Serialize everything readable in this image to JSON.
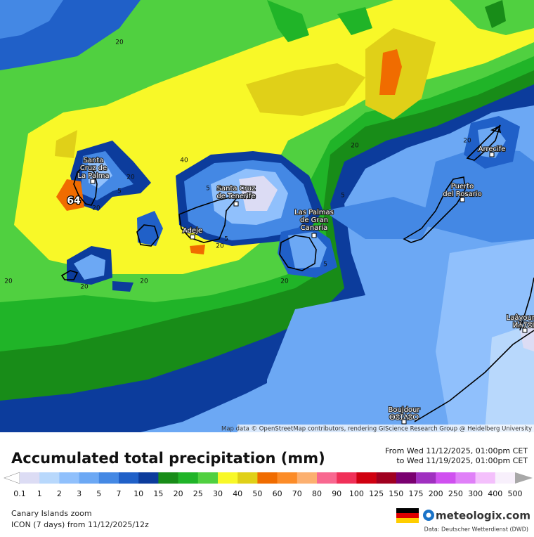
{
  "map": {
    "city_labels": [
      {
        "lines": [
          "Santa",
          "Cruz de",
          "La Palma"
        ]
      },
      {
        "lines": [
          "Santa Cruz",
          "de Tenerife"
        ]
      },
      {
        "lines": [
          "Adeje"
        ]
      },
      {
        "lines": [
          "Las Palmas",
          "de Gran",
          "Canaria"
        ]
      },
      {
        "lines": [
          "Puerto",
          "del Rosario"
        ]
      },
      {
        "lines": [
          "Arrecife"
        ]
      },
      {
        "lines": [
          "Laâyoune",
          "ⵍⵄⵢⵓⵏ"
        ]
      },
      {
        "lines": [
          "Boujdour",
          "ⴱⵓⵊⴷⵓⵔ"
        ]
      }
    ],
    "contour_labels": [
      20,
      20,
      20,
      20,
      20,
      20,
      20,
      20,
      20,
      20,
      40,
      5,
      5,
      5,
      5,
      5
    ],
    "max_label": 64,
    "attribution": "Map data © OpenStreetMap contributors, rendering GIScience Research Group @ Heidelberg University"
  },
  "legend": {
    "title": "Accumulated total precipitation (mm)",
    "period": [
      "From Wed 11/12/2025, 01:00pm CET",
      "to Wed 11/19/2025, 01:00pm CET"
    ],
    "ticks": [
      0.1,
      1,
      2,
      3,
      5,
      7,
      10,
      15,
      20,
      25,
      30,
      40,
      50,
      60,
      70,
      80,
      90,
      100,
      125,
      150,
      175,
      200,
      250,
      300,
      400,
      500
    ],
    "colors": [
      "#dcdcf4",
      "#b8d8fc",
      "#90c0fc",
      "#6ca8f4",
      "#4488e4",
      "#2060c8",
      "#0c3c9c",
      "#188c18",
      "#20b428",
      "#50d040",
      "#f8f828",
      "#e0d018",
      "#f06c00",
      "#fc8c28",
      "#fcb070",
      "#f86890",
      "#f03058",
      "#d00010",
      "#a00020",
      "#7a0070",
      "#a030c0",
      "#d050f0",
      "#e080f8",
      "#f4c0fc",
      "#f8f0fc"
    ],
    "arrow_colors": [
      "#ffffff",
      "#a8a8a8"
    ]
  },
  "footer": {
    "region": "Canary Islands zoom",
    "model": "ICON (7 days) from 11/12/2025/12z",
    "brand": "meteologix.com",
    "source": "Data: Deutscher Wetterdienst (DWD)"
  }
}
